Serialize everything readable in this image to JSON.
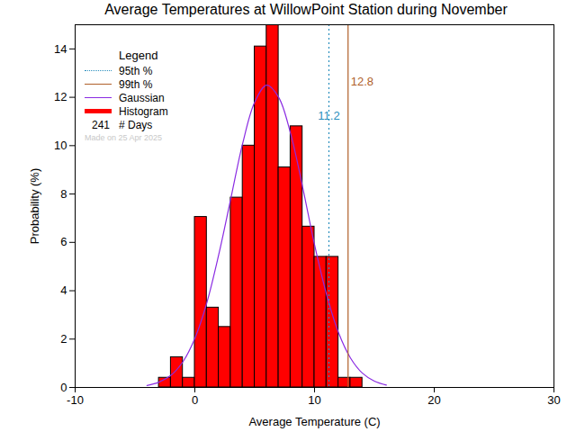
{
  "chart_data": {
    "type": "histogram",
    "title": "Average Temperatures at WillowPoint Station during November",
    "x_label": "Average Temperature (C)",
    "y_label": "Probability (%)",
    "xlim": [
      -10,
      30
    ],
    "xticks": [
      -10,
      0,
      10,
      20,
      30
    ],
    "ylim": [
      0,
      15
    ],
    "yticks": [
      0,
      2,
      4,
      6,
      8,
      10,
      12,
      14
    ],
    "legend": "top-left",
    "legend_title": "Legend",
    "days": 241,
    "days_label": "# Days",
    "note": "Made on 25 Apr 2025",
    "series": [
      {
        "name": "Gaussian",
        "type": "line",
        "color": "#8a2be2",
        "line_style": "solid",
        "x": [
          -4,
          -3,
          -2,
          -1,
          0,
          1,
          2,
          3,
          4,
          5,
          6,
          7,
          8,
          9,
          10,
          11,
          12,
          13,
          14,
          15,
          16
        ],
        "values": [
          0.08,
          0.22,
          0.5,
          1.06,
          2.03,
          3.5,
          5.5,
          7.8,
          10.1,
          11.8,
          12.5,
          12.0,
          10.5,
          8.3,
          5.9,
          3.85,
          2.27,
          1.22,
          0.59,
          0.26,
          0.1
        ]
      },
      {
        "name": "Histogram",
        "type": "bar",
        "color": "#ff0000",
        "bins": [
          -3,
          -2,
          -1,
          0,
          1,
          2,
          3,
          4,
          5,
          6,
          7,
          8,
          9,
          10,
          11,
          12,
          13,
          14
        ],
        "values": [
          0.4,
          1.25,
          0.4,
          7.05,
          3.3,
          2.5,
          7.85,
          10.0,
          14.1,
          15.0,
          9.1,
          10.8,
          6.65,
          5.4,
          5.4,
          0.4,
          0.4
        ]
      }
    ],
    "annotations": [
      {
        "name": "95th %",
        "value": 11.2,
        "label": "11.2",
        "color": "#2a8fbd",
        "line_style": "dotted"
      },
      {
        "name": "99th %",
        "value": 12.8,
        "label": "12.8",
        "color": "#b0602a",
        "line_style": "solid"
      }
    ]
  }
}
